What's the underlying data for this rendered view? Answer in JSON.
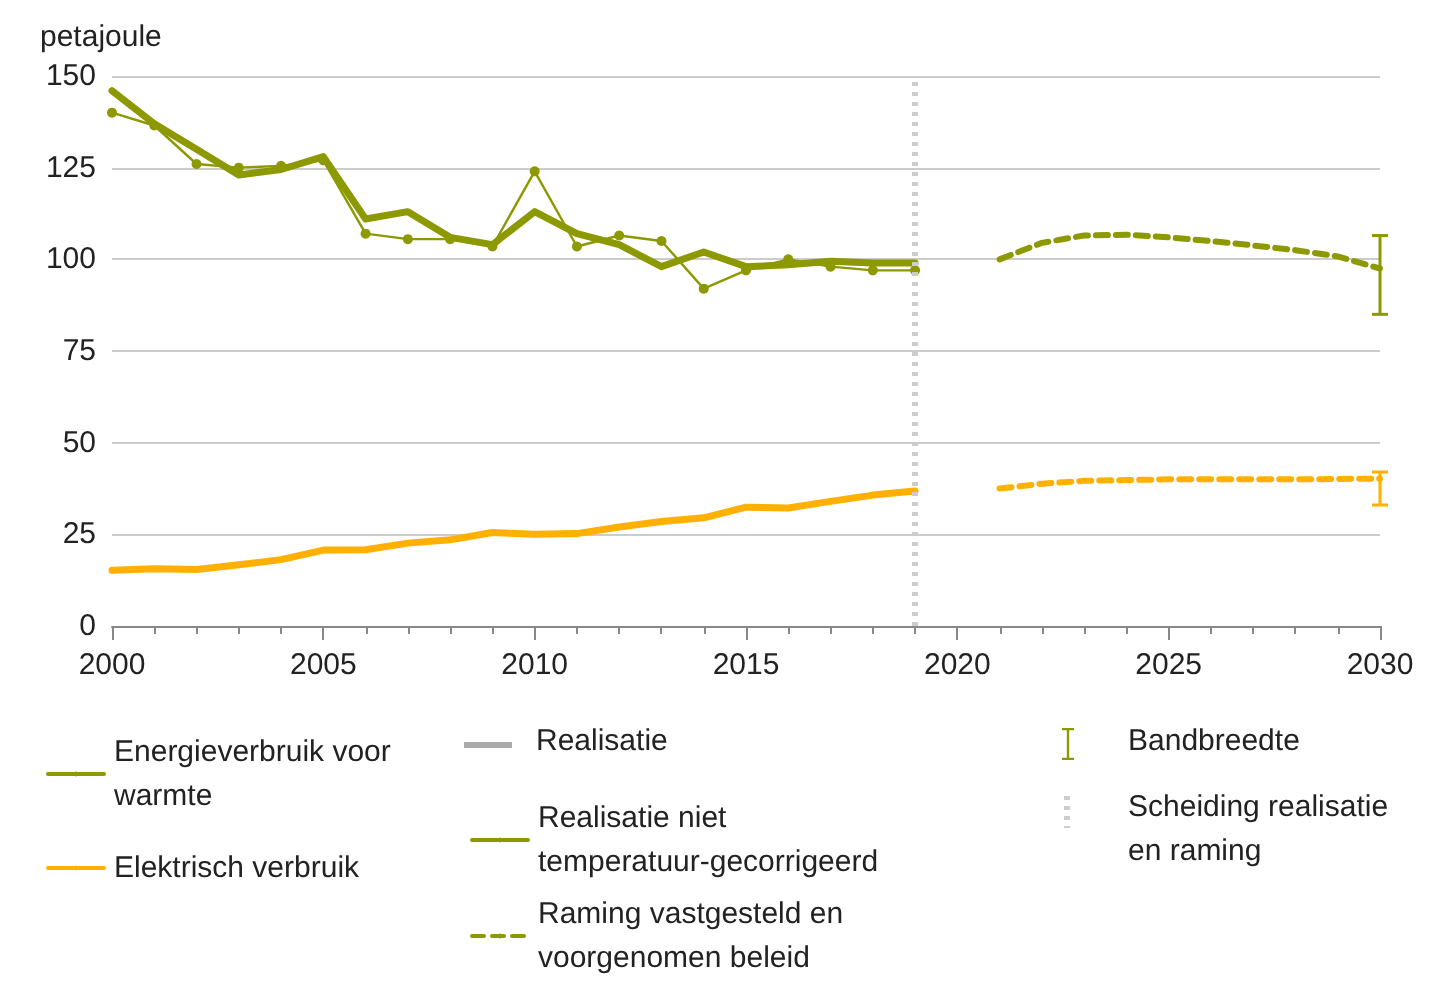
{
  "chart_data": {
    "type": "line",
    "ylabel": "petajoule",
    "xlim": [
      2000,
      2030
    ],
    "xticks": [
      2000,
      2005,
      2010,
      2015,
      2020,
      2025,
      2030
    ],
    "ylim": [
      0,
      150
    ],
    "yticks": [
      0,
      25,
      50,
      75,
      100,
      125,
      150
    ],
    "grid": "y",
    "legend": "bottom",
    "annotations": [
      "Realisatie",
      "Bandbreedte"
    ],
    "ref_lines": [
      {
        "axis": "x",
        "value": 2019,
        "label": "Scheiding realisatie en raming",
        "color": "#cccccc",
        "line_style": "dotted"
      }
    ],
    "series": [
      {
        "name": "Energieverbruik voor warmte",
        "color": "#8c9900",
        "line_style": "solid",
        "x": [
          2000,
          2001,
          2002,
          2003,
          2004,
          2005,
          2006,
          2007,
          2008,
          2009,
          2010,
          2011,
          2012,
          2013,
          2014,
          2015,
          2016,
          2017,
          2018,
          2019
        ],
        "values": [
          146,
          137,
          130,
          123,
          124.5,
          128,
          111,
          113,
          106,
          104,
          113,
          107,
          104,
          98,
          102,
          98,
          98.5,
          99.5,
          99,
          99
        ]
      },
      {
        "name": "Elektrisch verbruik",
        "color": "#ffb000",
        "line_style": "solid",
        "x": [
          2000,
          2001,
          2002,
          2003,
          2004,
          2005,
          2006,
          2007,
          2008,
          2009,
          2010,
          2011,
          2012,
          2013,
          2014,
          2015,
          2016,
          2017,
          2018,
          2019
        ],
        "values": [
          15.2,
          15.6,
          15.4,
          16.7,
          18.1,
          20.7,
          20.8,
          22.6,
          23.5,
          25.5,
          25,
          25.2,
          27,
          28.5,
          29.5,
          32.4,
          32.2,
          34,
          35.7,
          36.8
        ]
      },
      {
        "name": "Realisatie niet temperatuur-gecorrigeerd",
        "color": "#8c9900",
        "line_style": "solid",
        "marker": "circle",
        "x": [
          2000,
          2001,
          2002,
          2003,
          2004,
          2005,
          2006,
          2007,
          2008,
          2009,
          2010,
          2011,
          2012,
          2013,
          2014,
          2015,
          2016,
          2017,
          2018,
          2019
        ],
        "values": [
          140,
          136.5,
          126,
          125,
          125.5,
          127,
          107,
          105.5,
          105.5,
          103.5,
          124,
          103.5,
          106.5,
          105,
          92,
          97,
          100,
          98,
          97,
          97
        ]
      },
      {
        "name": "Raming vastgesteld en voorgenomen beleid",
        "color": "#8c9900",
        "line_style": "dashed",
        "x": [
          2021,
          2022,
          2023,
          2024,
          2025,
          2026,
          2027,
          2028,
          2029,
          2030
        ],
        "values": [
          100,
          104.5,
          106.5,
          106.7,
          106,
          105,
          103.8,
          102.5,
          100.8,
          97.5
        ],
        "errors": [
          null,
          null,
          null,
          null,
          null,
          null,
          null,
          null,
          null,
          [
            85,
            106.5
          ]
        ]
      },
      {
        "color": "#ffb000",
        "line_style": "dashed",
        "x": [
          2021,
          2022,
          2023,
          2024,
          2025,
          2026,
          2027,
          2028,
          2029,
          2030
        ],
        "values": [
          37.5,
          38.8,
          39.6,
          39.8,
          40,
          40,
          40,
          40,
          40.1,
          40.2
        ],
        "errors": [
          null,
          null,
          null,
          null,
          null,
          null,
          null,
          null,
          null,
          [
            33,
            42
          ]
        ]
      }
    ]
  }
}
